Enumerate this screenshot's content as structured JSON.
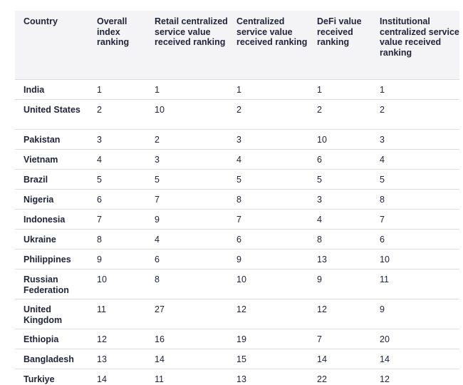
{
  "table": {
    "headers": [
      "Country",
      "Overall index ranking",
      "Retail centralized service value received ranking",
      "Centralized service value received ranking",
      "DeFi value received ranking",
      "Institutional centralized service value received ranking"
    ],
    "rows": [
      [
        "India",
        "1",
        "1",
        "1",
        "1",
        "1"
      ],
      [
        "United States",
        "2",
        "10",
        "2",
        "2",
        "2"
      ],
      [
        "Pakistan",
        "3",
        "2",
        "3",
        "10",
        "3"
      ],
      [
        "Vietnam",
        "4",
        "3",
        "4",
        "6",
        "4"
      ],
      [
        "Brazil",
        "5",
        "5",
        "5",
        "5",
        "5"
      ],
      [
        "Nigeria",
        "6",
        "7",
        "8",
        "3",
        "8"
      ],
      [
        "Indonesia",
        "7",
        "9",
        "7",
        "4",
        "7"
      ],
      [
        "Ukraine",
        "8",
        "4",
        "6",
        "8",
        "6"
      ],
      [
        "Philippines",
        "9",
        "6",
        "9",
        "13",
        "10"
      ],
      [
        "Russian Federation",
        "10",
        "8",
        "10",
        "9",
        "11"
      ],
      [
        "United Kingdom",
        "11",
        "27",
        "12",
        "12",
        "9"
      ],
      [
        "Ethiopia",
        "12",
        "16",
        "19",
        "7",
        "20"
      ],
      [
        "Bangladesh",
        "13",
        "14",
        "15",
        "14",
        "14"
      ],
      [
        "Turkiye",
        "14",
        "11",
        "13",
        "22",
        "12"
      ]
    ]
  },
  "colors": {
    "header_bg": "#f4f4f6",
    "text": "#22243a",
    "divider": "#dcdcdc"
  }
}
